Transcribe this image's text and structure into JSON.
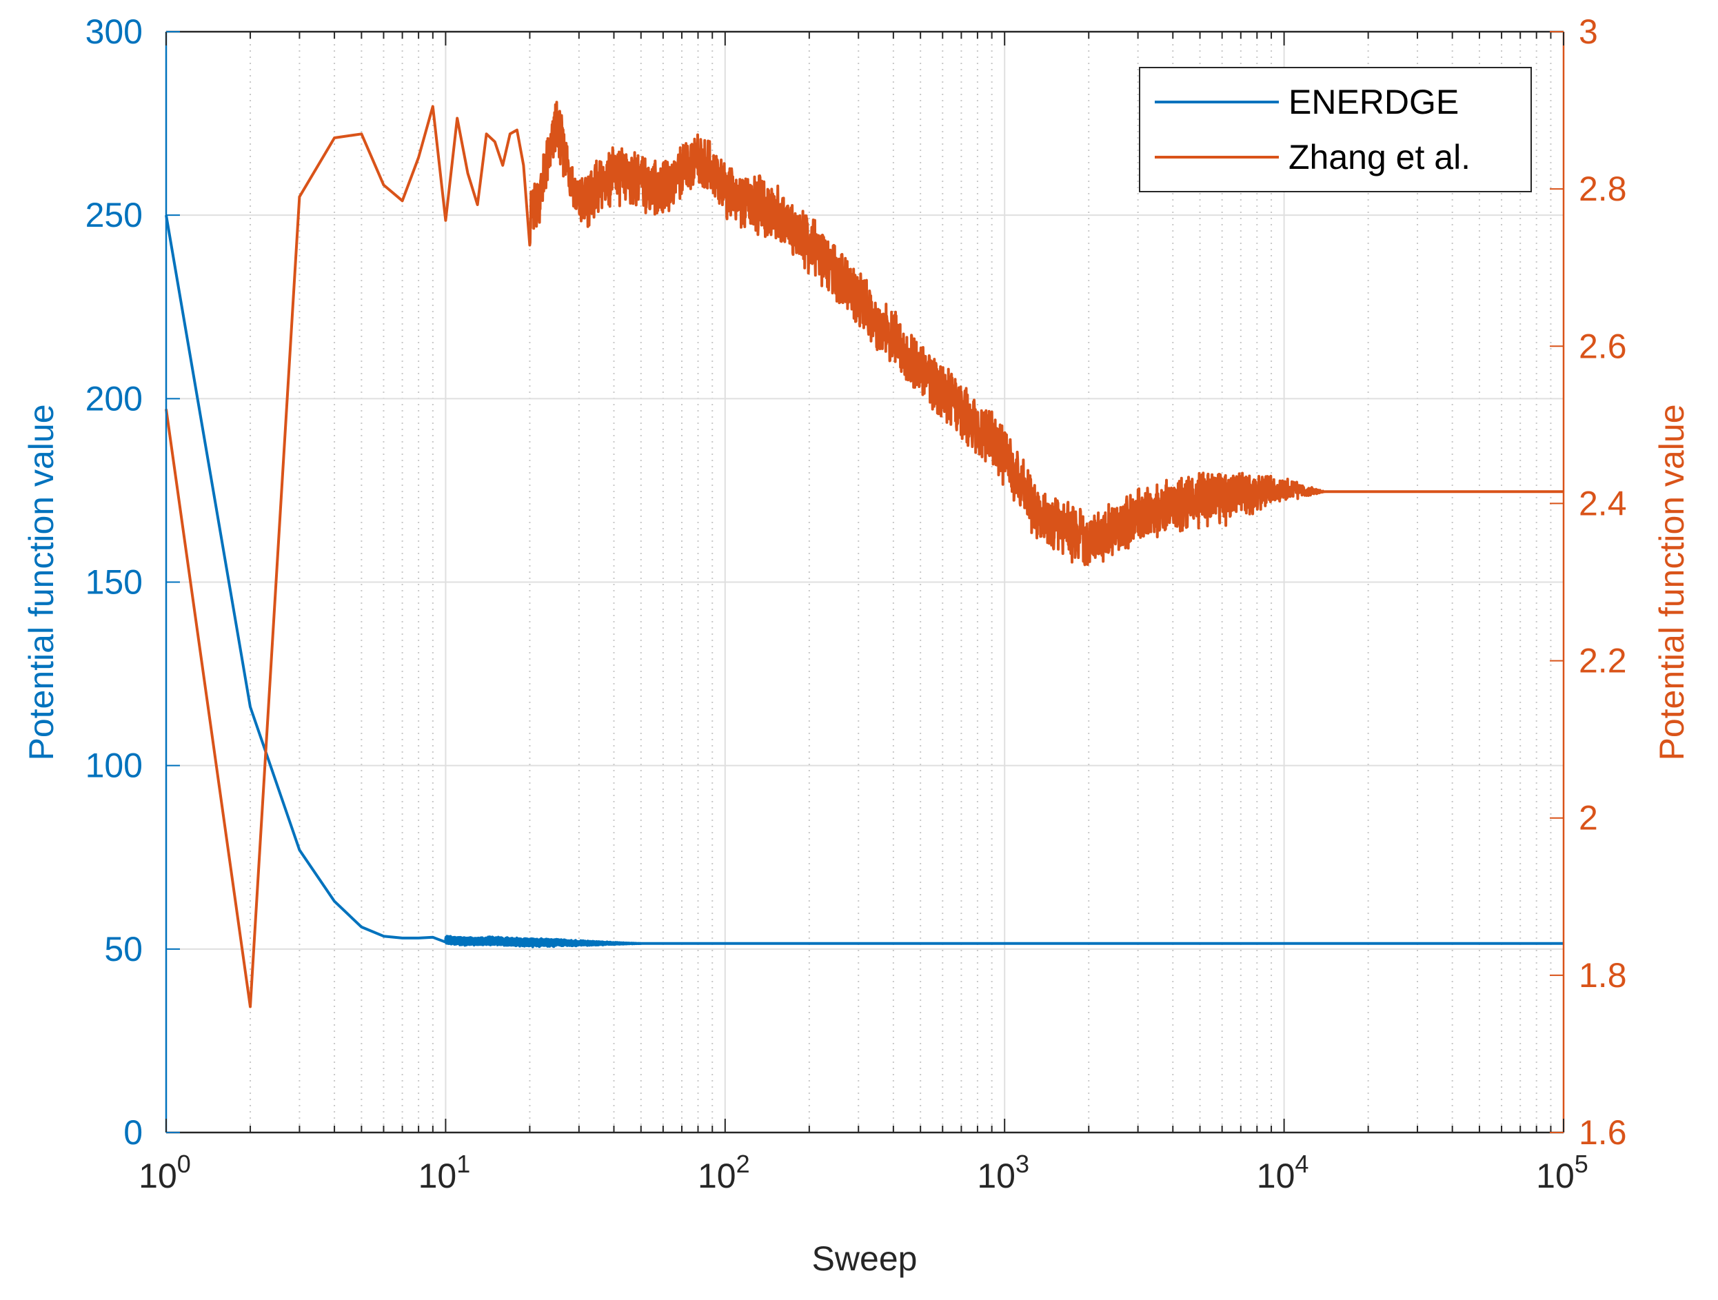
{
  "colors": {
    "left": "#0072BD",
    "right": "#D95319",
    "axis": "#262626",
    "grid": "#DFDFDF",
    "minorGrid": "#C7C7C7"
  },
  "chart_data": {
    "type": "line",
    "xlabel": "Sweep",
    "ylabel_left": "Potential function value",
    "ylabel_right": "Potential function value",
    "xscale": "log",
    "xlim": [
      1,
      100000
    ],
    "ylim_left": [
      0,
      300
    ],
    "ylim_right": [
      1.6,
      3
    ],
    "x_ticks": [
      {
        "base": "10",
        "exp": "0",
        "value": 1
      },
      {
        "base": "10",
        "exp": "1",
        "value": 10
      },
      {
        "base": "10",
        "exp": "2",
        "value": 100
      },
      {
        "base": "10",
        "exp": "3",
        "value": 1000
      },
      {
        "base": "10",
        "exp": "4",
        "value": 10000
      },
      {
        "base": "10",
        "exp": "5",
        "value": 100000
      }
    ],
    "y_ticks_left": [
      "0",
      "50",
      "100",
      "150",
      "200",
      "250",
      "300"
    ],
    "y_ticks_right": [
      "1.6",
      "1.8",
      "2",
      "2.2",
      "2.4",
      "2.6",
      "2.8",
      "3"
    ],
    "grid": true,
    "legend_position": "top-right",
    "series": [
      {
        "name": "ENERDGE",
        "axis": "left",
        "points": [
          [
            1,
            250
          ],
          [
            2,
            116
          ],
          [
            3,
            77
          ],
          [
            4,
            63
          ],
          [
            5,
            56
          ],
          [
            6,
            53.5
          ],
          [
            7,
            53
          ],
          [
            8,
            53
          ],
          [
            9,
            53.2
          ],
          [
            10,
            52.5
          ],
          [
            12,
            52
          ],
          [
            15,
            52.2
          ],
          [
            20,
            51.8
          ],
          [
            30,
            51.6
          ],
          [
            50,
            51.5
          ],
          [
            100,
            51.5
          ],
          [
            1000,
            51.5
          ],
          [
            10000,
            51.5
          ],
          [
            100000,
            51.5
          ]
        ],
        "noise": {
          "amplitude": 1.2,
          "from": 10,
          "to": 50
        }
      },
      {
        "name": "Zhang et al.",
        "axis": "right",
        "points": [
          [
            1,
            2.52
          ],
          [
            2,
            1.76
          ],
          [
            3,
            2.79
          ],
          [
            4,
            2.865
          ],
          [
            5,
            2.87
          ],
          [
            6,
            2.805
          ],
          [
            7,
            2.785
          ],
          [
            8,
            2.84
          ],
          [
            9,
            2.905
          ],
          [
            10,
            2.76
          ],
          [
            11,
            2.89
          ],
          [
            12,
            2.82
          ],
          [
            13,
            2.78
          ],
          [
            14,
            2.87
          ],
          [
            15,
            2.86
          ],
          [
            16,
            2.83
          ],
          [
            17,
            2.87
          ],
          [
            18,
            2.875
          ],
          [
            19,
            2.83
          ],
          [
            20,
            2.76
          ],
          [
            22,
            2.8
          ],
          [
            25,
            2.88
          ],
          [
            30,
            2.78
          ],
          [
            40,
            2.82
          ],
          [
            60,
            2.8
          ],
          [
            80,
            2.84
          ],
          [
            100,
            2.8
          ],
          [
            150,
            2.77
          ],
          [
            200,
            2.73
          ],
          [
            300,
            2.66
          ],
          [
            500,
            2.57
          ],
          [
            700,
            2.52
          ],
          [
            1000,
            2.46
          ],
          [
            1300,
            2.39
          ],
          [
            1700,
            2.365
          ],
          [
            2000,
            2.35
          ],
          [
            3000,
            2.385
          ],
          [
            5000,
            2.405
          ],
          [
            8000,
            2.415
          ],
          [
            10000,
            2.418
          ],
          [
            13000,
            2.415
          ],
          [
            100000,
            2.415
          ]
        ],
        "noise": {
          "amplitude": 0.04,
          "from": 20,
          "to": 14000
        }
      }
    ]
  }
}
